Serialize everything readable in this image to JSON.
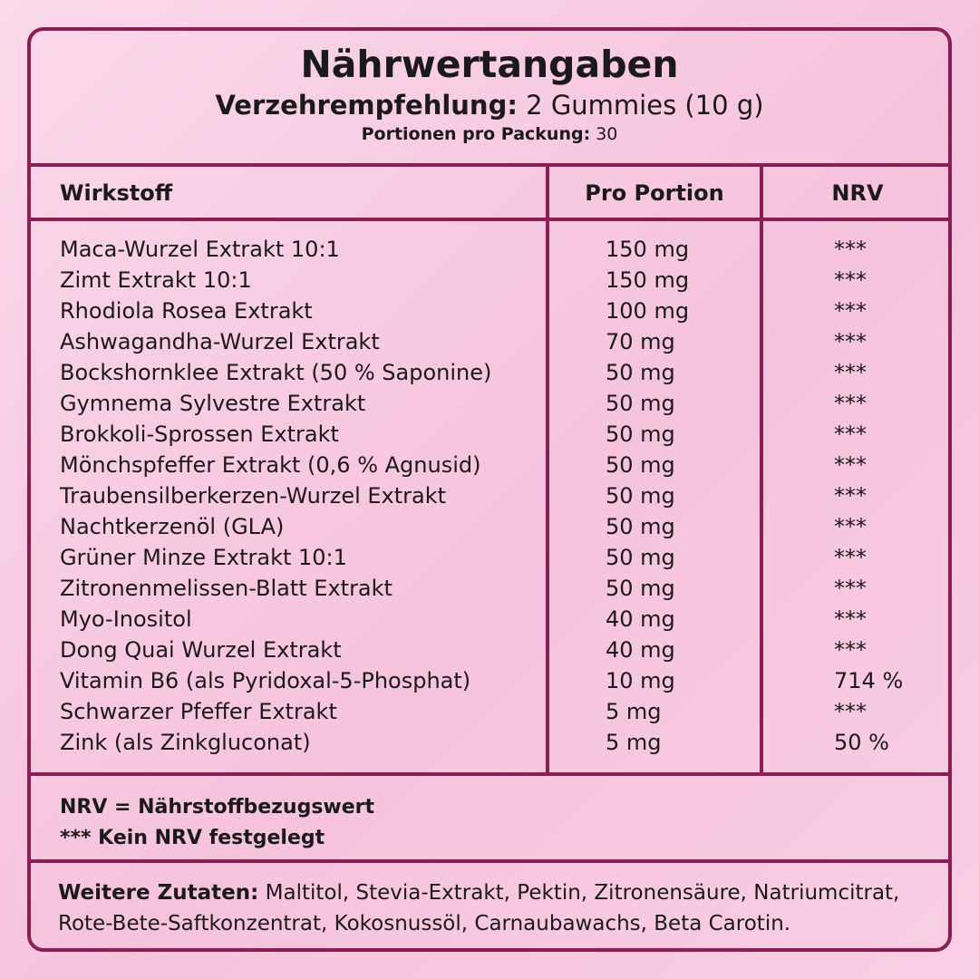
{
  "header": {
    "title": "Nährwertangaben",
    "serving_label": "Verzehrempfehlung:",
    "serving_value": "2 Gummies (10 g)",
    "servings_label": "Portionen pro Packung:",
    "servings_value": "30"
  },
  "table": {
    "headers": [
      "Wirkstoff",
      "Pro Portion",
      "NRV"
    ],
    "rows": [
      {
        "name": "Maca-Wurzel Extrakt 10:1",
        "amount": "150 mg",
        "nrv": "***"
      },
      {
        "name": "Zimt Extrakt 10:1",
        "amount": "150 mg",
        "nrv": "***"
      },
      {
        "name": "Rhodiola Rosea Extrakt",
        "amount": "100 mg",
        "nrv": "***"
      },
      {
        "name": "Ashwagandha-Wurzel Extrakt",
        "amount": "70 mg",
        "nrv": "***"
      },
      {
        "name": "Bockshornklee Extrakt (50 % Saponine)",
        "amount": "50 mg",
        "nrv": "***"
      },
      {
        "name": "Gymnema Sylvestre Extrakt",
        "amount": "50 mg",
        "nrv": "***"
      },
      {
        "name": "Brokkoli-Sprossen Extrakt",
        "amount": "50 mg",
        "nrv": "***"
      },
      {
        "name": "Mönchspfeffer Extrakt (0,6 % Agnusid)",
        "amount": "50 mg",
        "nrv": "***"
      },
      {
        "name": "Traubensilberkerzen-Wurzel Extrakt",
        "amount": "50 mg",
        "nrv": "***"
      },
      {
        "name": "Nachtkerzenöl (GLA)",
        "amount": "50 mg",
        "nrv": "***"
      },
      {
        "name": "Grüner Minze Extrakt 10:1",
        "amount": "50 mg",
        "nrv": "***"
      },
      {
        "name": "Zitronenmelissen-Blatt Extrakt",
        "amount": "50 mg",
        "nrv": "***"
      },
      {
        "name": "Myo-Inositol",
        "amount": "40 mg",
        "nrv": "***"
      },
      {
        "name": "Dong Quai Wurzel Extrakt",
        "amount": "40 mg",
        "nrv": "***"
      },
      {
        "name": "Vitamin B6 (als Pyridoxal-5-Phosphat)",
        "amount": "10 mg",
        "nrv": "714 %"
      },
      {
        "name": "Schwarzer Pfeffer Extrakt",
        "amount": "5 mg",
        "nrv": "***"
      },
      {
        "name": "Zink (als Zinkgluconat)",
        "amount": "5 mg",
        "nrv": "50 %"
      }
    ]
  },
  "legend": {
    "line1": "NRV = Nährstoffbezugswert",
    "line2": "*** Kein NRV festgelegt"
  },
  "ingredients": {
    "label": "Weitere Zutaten:",
    "text": "Maltitol, Stevia-Extrakt, Pektin, Zitronensäure, Natriumcitrat, Rote-Bete-Saftkonzentrat, Kokosnussöl, Carnaubawachs, Beta Carotin."
  },
  "colors": {
    "border": "#8f1d55",
    "background": "#f8cde3"
  }
}
